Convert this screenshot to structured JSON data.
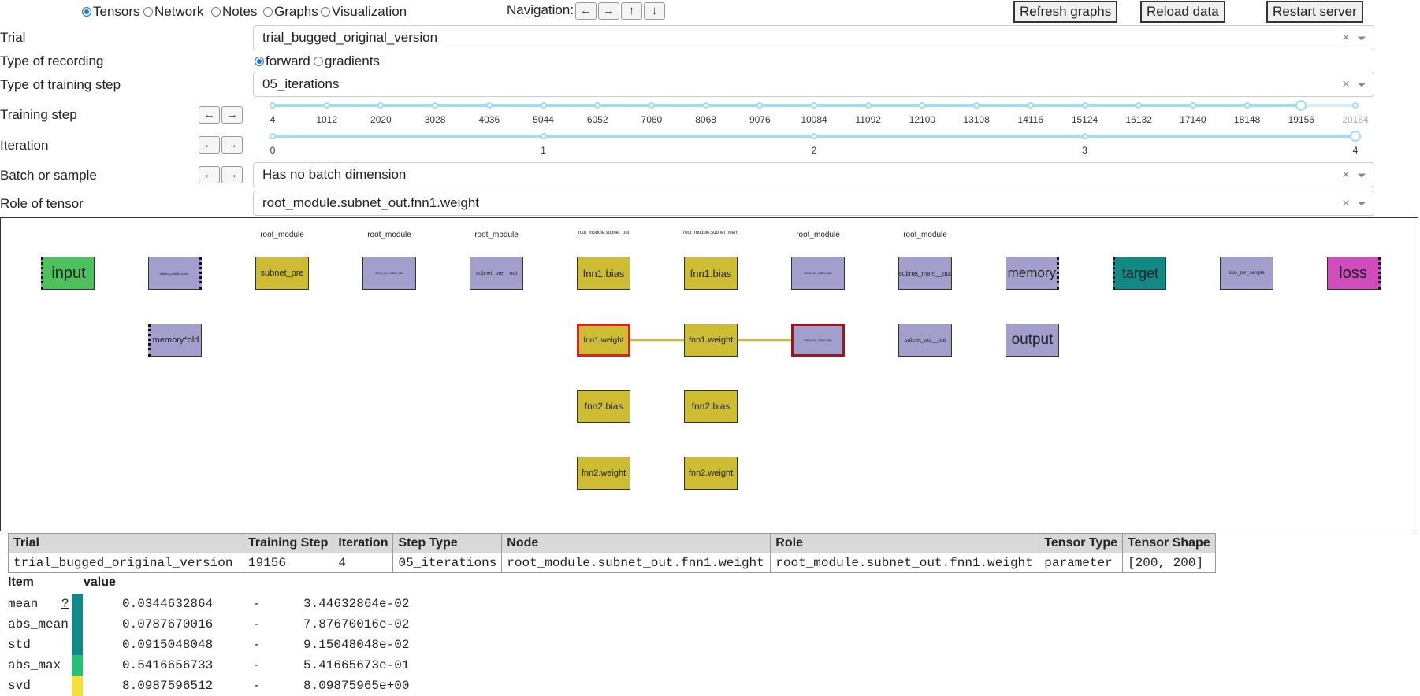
{
  "topbar": {
    "tabs": [
      {
        "label": "Tensors",
        "selected": true
      },
      {
        "label": "Network",
        "selected": false
      },
      {
        "label": "Notes",
        "selected": false
      },
      {
        "label": "Graphs",
        "selected": false
      },
      {
        "label": "Visualization",
        "selected": false
      }
    ],
    "navigation_label": "Navigation:",
    "nav_buttons": [
      "←",
      "→",
      "↑",
      "↓"
    ],
    "refresh_label": "Refresh graphs",
    "reload_label": "Reload data",
    "restart_label": "Restart server"
  },
  "controls": {
    "trial_label": "Trial",
    "trial_value": "trial_bugged_original_version",
    "recording_label": "Type of recording",
    "recording_options": [
      {
        "label": "forward",
        "selected": true
      },
      {
        "label": "gradients",
        "selected": false
      }
    ],
    "step_type_label": "Type of training step",
    "step_type_value": "05_iterations",
    "training_step_label": "Training step",
    "iteration_label": "Iteration",
    "batch_label": "Batch or sample",
    "batch_value": "Has no batch dimension",
    "role_label": "Role of tensor",
    "role_value": "root_module.subnet_out.fnn1.weight",
    "clear_symbol": "×",
    "arrow_left": "←",
    "arrow_right": "→"
  },
  "training_step_slider": {
    "marks": [
      "4",
      "1012",
      "2020",
      "3028",
      "4036",
      "5044",
      "6052",
      "7060",
      "8068",
      "9076",
      "10084",
      "11092",
      "12100",
      "13108",
      "14116",
      "15124",
      "16132",
      "17140",
      "18148",
      "19156",
      "20164"
    ],
    "selected_value": 19156
  },
  "iteration_slider": {
    "marks": [
      "0",
      "1",
      "2",
      "3",
      "4"
    ],
    "selected_value": 4
  },
  "graph": {
    "colors": {
      "purple": "#a29fcc",
      "olive": "#cebd32",
      "input": "#4cc15c",
      "target": "#118a85",
      "loss": "#d14cbc",
      "highlight": "#e0201b",
      "edge": "#d8b82a"
    },
    "group_labels": [
      "root_module",
      "root_module",
      "root_module",
      "root_module.subnet_out",
      "root_module.subnet_mem",
      "root_module",
      "root_module"
    ],
    "nodes": {
      "input": "input",
      "helper": "helper_partial_sums",
      "subnet_pre": "subnet_pre",
      "subnet_pre_hidden": "subnet_pre__hidden_state",
      "subnet_pre_out": "subnet_pre__out",
      "out_fnn1_bias": "fnn1.bias",
      "mem_fnn1_bias": "fnn1.bias",
      "subnet_out_hidden_top": "subnet_out__hidden_state",
      "subnet_mem_out": "subnet_mem__out",
      "memory": "memory",
      "target": "target",
      "loss_per_sample": "loss_per_sample",
      "loss": "loss",
      "memory_old": "memory*old",
      "out_fnn1_weight": "fnn1.weight",
      "mem_fnn1_weight": "fnn1.weight",
      "subnet_out_hidden_sel": "subnet_out__hidden_state",
      "subnet_out_out": "subnet_out__out",
      "output": "output",
      "out_fnn2_bias": "fnn2.bias",
      "mem_fnn2_bias": "fnn2.bias",
      "out_fnn2_weight": "fnn2.weight",
      "mem_fnn2_weight": "fnn2.weight"
    }
  },
  "info_table": {
    "headers": [
      "Trial",
      "Training Step",
      "Iteration",
      "Step Type",
      "Node",
      "Role",
      "Tensor Type",
      "Tensor Shape"
    ],
    "row": [
      "trial_bugged_original_version",
      "19156",
      "4",
      "05_iterations",
      "root_module.subnet_out.fnn1.weight",
      "root_module.subnet_out.fnn1.weight",
      "parameter",
      "[200, 200]"
    ]
  },
  "stats": {
    "header_item": "Item",
    "header_value": "value",
    "help_label": "?",
    "separator": "-",
    "rows": [
      {
        "item": "mean",
        "value": "0.0344632864",
        "sci": "3.44632864e-02",
        "color": "#118a85"
      },
      {
        "item": "abs_mean",
        "value": "0.0787670016",
        "sci": "7.87670016e-02",
        "color": "#118a85"
      },
      {
        "item": "std",
        "value": "0.0915048048",
        "sci": "9.15048048e-02",
        "color": "#118a85"
      },
      {
        "item": "abs_max",
        "value": "0.5416656733",
        "sci": "5.41665673e-01",
        "color": "#26c07a"
      },
      {
        "item": "svd",
        "value": "8.0987596512",
        "sci": "8.09875965e+00",
        "color": "#f4e03a"
      }
    ]
  }
}
